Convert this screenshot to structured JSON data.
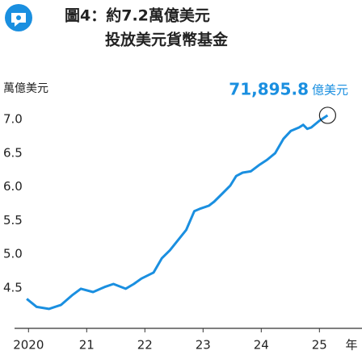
{
  "chart_data": {
    "type": "line",
    "title": "圖4：約7.2萬億美元",
    "subtitle": "投放美元貨幣基金",
    "ylabel": "萬億美元",
    "xlabel": "年",
    "annotation": {
      "number": "71,895.8",
      "unit": "億美元"
    },
    "x": [
      2019.97,
      2020.14,
      2020.35,
      2020.56,
      2020.76,
      2020.9,
      2021.11,
      2021.32,
      2021.46,
      2021.67,
      2021.81,
      2021.94,
      2022.15,
      2022.29,
      2022.43,
      2022.57,
      2022.71,
      2022.85,
      2022.96,
      2023.1,
      2023.19,
      2023.33,
      2023.47,
      2023.57,
      2023.68,
      2023.82,
      2023.96,
      2024.1,
      2024.24,
      2024.38,
      2024.51,
      2024.65,
      2024.72,
      2024.79,
      2024.86,
      2025.0,
      2025.14
    ],
    "series": [
      {
        "color": "#1a8fe0",
        "values": [
          4.34,
          4.22,
          4.19,
          4.25,
          4.4,
          4.49,
          4.44,
          4.52,
          4.56,
          4.49,
          4.56,
          4.64,
          4.73,
          4.94,
          5.06,
          5.21,
          5.36,
          5.64,
          5.68,
          5.72,
          5.78,
          5.9,
          6.02,
          6.16,
          6.21,
          6.23,
          6.32,
          6.4,
          6.5,
          6.71,
          6.83,
          6.88,
          6.92,
          6.86,
          6.88,
          6.98,
          7.06
        ]
      }
    ],
    "xlim": [
      2019.76,
      2025.69
    ],
    "xticks": [
      {
        "value": 2020,
        "label": "2020"
      },
      {
        "value": 2021,
        "label": "21"
      },
      {
        "value": 2022,
        "label": "22"
      },
      {
        "value": 2023,
        "label": "23"
      },
      {
        "value": 2024,
        "label": "24"
      },
      {
        "value": 2025,
        "label": "25"
      }
    ],
    "ylim": [
      3.9,
      7.6
    ],
    "yticks": [
      {
        "value": 4.5,
        "label": "4.5"
      },
      {
        "value": 5,
        "label": "5.0"
      },
      {
        "value": 5.5,
        "label": "5.5"
      },
      {
        "value": 6,
        "label": "6.0"
      },
      {
        "value": 6.5,
        "label": "6.5"
      },
      {
        "value": 7,
        "label": "7.0"
      }
    ],
    "grid": false
  }
}
